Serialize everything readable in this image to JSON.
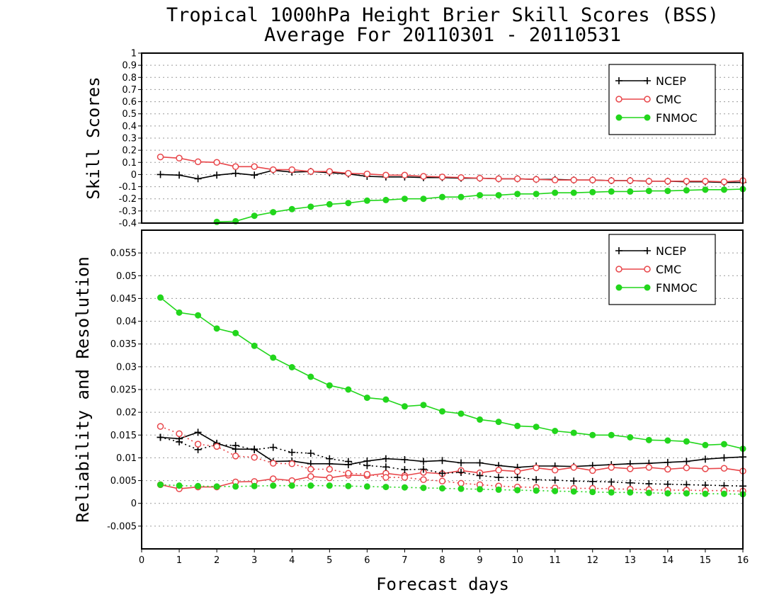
{
  "title_lines": [
    "Tropical 1000hPa Height Brier Skill Scores (BSS)",
    "Average For 20110301 - 20110531"
  ],
  "colors": {
    "NCEP": "#000000",
    "CMC": "#e8464a",
    "FNMOC": "#22d61c"
  },
  "chart_data": [
    {
      "type": "line",
      "ylabel": "Skill Scores",
      "xlabel": "",
      "xlim": [
        0,
        16
      ],
      "ylim": [
        -0.4,
        1
      ],
      "yticks": [
        "-0.4",
        "-0.3",
        "-0.2",
        "-0.1",
        "0",
        "0.1",
        "0.2",
        "0.3",
        "0.4",
        "0.5",
        "0.6",
        "0.7",
        "0.8",
        "0.9",
        "1"
      ],
      "grid": true,
      "legend_position": "top-right",
      "x": [
        0.5,
        1,
        1.5,
        2,
        2.5,
        3,
        3.5,
        4,
        4.5,
        5,
        5.5,
        6,
        6.5,
        7,
        7.5,
        8,
        8.5,
        9,
        9.5,
        10,
        10.5,
        11,
        11.5,
        12,
        12.5,
        13,
        13.5,
        14,
        14.5,
        15,
        15.5,
        16
      ],
      "series": [
        {
          "name": "NCEP",
          "marker": "plus",
          "style": "solid",
          "values": [
            0.0,
            -0.005,
            -0.035,
            -0.005,
            0.01,
            -0.005,
            0.035,
            0.02,
            0.025,
            0.015,
            0.005,
            -0.015,
            -0.02,
            -0.02,
            -0.025,
            -0.025,
            -0.03,
            -0.03,
            -0.035,
            -0.035,
            -0.04,
            -0.04,
            -0.045,
            -0.045,
            -0.05,
            -0.05,
            -0.055,
            -0.055,
            -0.06,
            -0.06,
            -0.065,
            -0.065
          ]
        },
        {
          "name": "CMC",
          "marker": "open-circle",
          "style": "solid",
          "values": [
            0.145,
            0.135,
            0.105,
            0.1,
            0.065,
            0.065,
            0.04,
            0.04,
            0.025,
            0.025,
            0.01,
            0.005,
            -0.005,
            -0.005,
            -0.015,
            -0.02,
            -0.025,
            -0.03,
            -0.035,
            -0.035,
            -0.04,
            -0.045,
            -0.045,
            -0.045,
            -0.05,
            -0.05,
            -0.055,
            -0.055,
            -0.055,
            -0.055,
            -0.06,
            -0.05
          ]
        },
        {
          "name": "FNMOC",
          "marker": "filled-circle",
          "style": "solid",
          "values": [
            null,
            null,
            null,
            -0.39,
            -0.385,
            -0.34,
            -0.31,
            -0.285,
            -0.265,
            -0.245,
            -0.235,
            -0.215,
            -0.21,
            -0.2,
            -0.2,
            -0.185,
            -0.185,
            -0.17,
            -0.17,
            -0.16,
            -0.16,
            -0.15,
            -0.15,
            -0.145,
            -0.14,
            -0.14,
            -0.135,
            -0.135,
            -0.13,
            -0.125,
            -0.125,
            -0.12
          ]
        }
      ]
    },
    {
      "type": "line",
      "ylabel": "Reliability and Resolution",
      "xlabel": "Forecast days",
      "xlim": [
        0,
        16
      ],
      "ylim": [
        -0.01,
        0.06
      ],
      "xticks": [
        "0",
        "1",
        "2",
        "3",
        "4",
        "5",
        "6",
        "7",
        "8",
        "9",
        "10",
        "11",
        "12",
        "13",
        "14",
        "15",
        "16"
      ],
      "yticks": [
        "-0.005",
        "0",
        "0.005",
        "0.01",
        "0.015",
        "0.02",
        "0.025",
        "0.03",
        "0.035",
        "0.04",
        "0.045",
        "0.05",
        "0.055"
      ],
      "grid": true,
      "legend_position": "top-right",
      "x": [
        0.5,
        1,
        1.5,
        2,
        2.5,
        3,
        3.5,
        4,
        4.5,
        5,
        5.5,
        6,
        6.5,
        7,
        7.5,
        8,
        8.5,
        9,
        9.5,
        10,
        10.5,
        11,
        11.5,
        12,
        12.5,
        13,
        13.5,
        14,
        14.5,
        15,
        15.5,
        16
      ],
      "series": [
        {
          "name": "NCEP",
          "group": "reliability",
          "marker": "plus",
          "style": "solid",
          "values": [
            0.0145,
            0.0142,
            0.0156,
            0.0132,
            0.0119,
            0.0119,
            0.0092,
            0.0093,
            0.0087,
            0.0087,
            0.0085,
            0.0093,
            0.0098,
            0.0096,
            0.0092,
            0.0094,
            0.0089,
            0.0089,
            0.0083,
            0.0079,
            0.0082,
            0.0082,
            0.0081,
            0.0083,
            0.0085,
            0.0087,
            0.0088,
            0.009,
            0.0092,
            0.0097,
            0.01,
            0.0102
          ]
        },
        {
          "name": "CMC",
          "group": "reliability",
          "marker": "open-circle",
          "style": "solid",
          "values": [
            0.0041,
            0.0032,
            0.0036,
            0.0036,
            0.0047,
            0.0048,
            0.0054,
            0.005,
            0.0059,
            0.0056,
            0.0062,
            0.0061,
            0.0066,
            0.0061,
            0.0068,
            0.0065,
            0.0072,
            0.0067,
            0.0073,
            0.007,
            0.0078,
            0.0073,
            0.0079,
            0.0072,
            0.0079,
            0.0076,
            0.0079,
            0.0075,
            0.0078,
            0.0076,
            0.0077,
            0.0071
          ]
        },
        {
          "name": "FNMOC",
          "group": "reliability",
          "marker": "filled-circle",
          "style": "solid",
          "values": [
            0.0452,
            0.0419,
            0.0413,
            0.0384,
            0.0374,
            0.0346,
            0.032,
            0.0299,
            0.0278,
            0.0259,
            0.025,
            0.0232,
            0.0228,
            0.0213,
            0.0216,
            0.0202,
            0.0197,
            0.0184,
            0.0179,
            0.017,
            0.0168,
            0.0159,
            0.0155,
            0.015,
            0.015,
            0.0145,
            0.0139,
            0.0138,
            0.0136,
            0.0128,
            0.013,
            0.012
          ]
        },
        {
          "name": "NCEP",
          "group": "resolution",
          "marker": "plus",
          "style": "dotted",
          "values": [
            0.0145,
            0.0135,
            0.0118,
            0.0129,
            0.0127,
            0.0118,
            0.0123,
            0.0112,
            0.011,
            0.0098,
            0.0092,
            0.0083,
            0.008,
            0.0074,
            0.0075,
            0.0066,
            0.0068,
            0.0061,
            0.0057,
            0.0057,
            0.0052,
            0.0051,
            0.0049,
            0.0048,
            0.0047,
            0.0045,
            0.0043,
            0.0042,
            0.0041,
            0.004,
            0.0039,
            0.0038
          ]
        },
        {
          "name": "CMC",
          "group": "resolution",
          "marker": "open-circle",
          "style": "dotted",
          "values": [
            0.0169,
            0.0153,
            0.013,
            0.0125,
            0.0104,
            0.0101,
            0.0088,
            0.0087,
            0.0075,
            0.0075,
            0.0066,
            0.0064,
            0.0057,
            0.0057,
            0.0052,
            0.0049,
            0.0044,
            0.0041,
            0.0038,
            0.0036,
            0.0035,
            0.0034,
            0.0033,
            0.0033,
            0.0032,
            0.0031,
            0.003,
            0.0029,
            0.0029,
            0.0028,
            0.0028,
            0.0027
          ]
        },
        {
          "name": "FNMOC",
          "group": "resolution",
          "marker": "filled-circle",
          "style": "dotted",
          "values": [
            0.0041,
            0.0039,
            0.0038,
            0.0037,
            0.0037,
            0.0038,
            0.0039,
            0.0039,
            0.0039,
            0.0039,
            0.0038,
            0.0037,
            0.0036,
            0.0035,
            0.0034,
            0.0033,
            0.0032,
            0.0031,
            0.003,
            0.0029,
            0.0028,
            0.0027,
            0.0026,
            0.0025,
            0.0024,
            0.0024,
            0.0023,
            0.0022,
            0.0022,
            0.0021,
            0.0021,
            0.002
          ]
        }
      ]
    }
  ]
}
